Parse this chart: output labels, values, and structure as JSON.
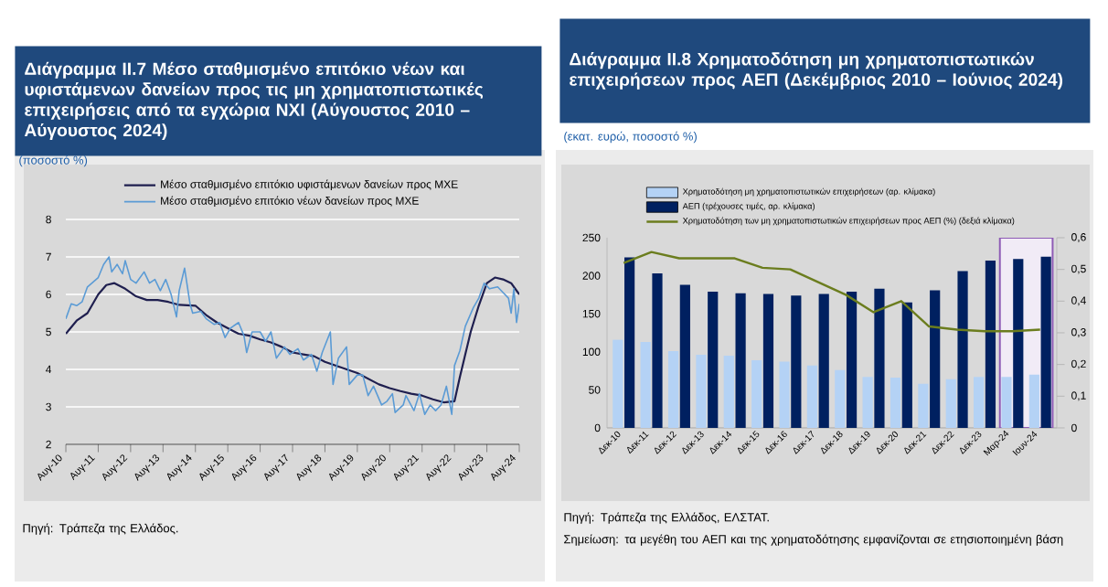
{
  "chart_data": [
    {
      "type": "line",
      "title": "Διάγραμμα ΙΙ.7 Μέσο σταθμισμένο επιτόκιο νέων και υφιστάμενων δανείων προς τις μη χρηματοπιστωτικές επιχειρήσεις από τα εγχώρια ΝΧΙ (Αύγουστος 2010 – Αύγουστος 2024)",
      "subtitle": "(ποσοστό %)",
      "annotations": [
        "Πηγή: Τράπεζα της Ελλάδος."
      ],
      "xlim": [
        "2010-08",
        "2024-08"
      ],
      "xticks": [
        {
          "value": "2010-08",
          "label": "Αυγ-10"
        },
        {
          "value": "2011-08",
          "label": "Αυγ-11"
        },
        {
          "value": "2012-08",
          "label": "Αυγ-12"
        },
        {
          "value": "2013-08",
          "label": "Αυγ-13"
        },
        {
          "value": "2014-08",
          "label": "Αυγ-14"
        },
        {
          "value": "2015-08",
          "label": "Αυγ-15"
        },
        {
          "value": "2016-08",
          "label": "Αυγ-16"
        },
        {
          "value": "2017-08",
          "label": "Αυγ-17"
        },
        {
          "value": "2018-08",
          "label": "Αυγ-18"
        },
        {
          "value": "2019-08",
          "label": "Αυγ-19"
        },
        {
          "value": "2020-08",
          "label": "Αυγ-20"
        },
        {
          "value": "2021-08",
          "label": "Αυγ-21"
        },
        {
          "value": "2022-08",
          "label": "Αυγ-22"
        },
        {
          "value": "2023-08",
          "label": "Αυγ-23"
        },
        {
          "value": "2024-08",
          "label": "Αυγ-24"
        }
      ],
      "ylim": [
        2,
        8
      ],
      "yticks": [
        2,
        3,
        4,
        5,
        6,
        7,
        8
      ],
      "grid": "y",
      "legend": "top",
      "series": [
        {
          "name": "Μέσο σταθμισμένο επιτόκιο υφιστάμενων δανείων προς ΜΧΕ",
          "color": "#1f1f4f",
          "x": [
            "2010-08",
            "2010-12",
            "2011-04",
            "2011-08",
            "2011-11",
            "2012-02",
            "2012-06",
            "2012-10",
            "2013-02",
            "2013-06",
            "2013-10",
            "2014-02",
            "2014-08",
            "2014-12",
            "2015-04",
            "2015-08",
            "2015-12",
            "2016-04",
            "2016-08",
            "2016-12",
            "2017-04",
            "2017-08",
            "2017-12",
            "2018-04",
            "2018-08",
            "2018-12",
            "2019-04",
            "2019-08",
            "2019-12",
            "2020-04",
            "2020-08",
            "2020-12",
            "2021-04",
            "2021-08",
            "2021-12",
            "2022-04",
            "2022-08",
            "2022-10",
            "2022-12",
            "2023-02",
            "2023-05",
            "2023-08",
            "2023-11",
            "2024-02",
            "2024-05",
            "2024-08"
          ],
          "values": [
            4.95,
            5.3,
            5.5,
            6.0,
            6.25,
            6.3,
            6.15,
            5.95,
            5.85,
            5.85,
            5.8,
            5.72,
            5.7,
            5.45,
            5.25,
            5.1,
            4.95,
            4.9,
            4.8,
            4.72,
            4.6,
            4.45,
            4.4,
            4.35,
            4.2,
            4.1,
            4.0,
            3.9,
            3.75,
            3.6,
            3.5,
            3.42,
            3.35,
            3.3,
            3.2,
            3.12,
            3.15,
            3.8,
            4.4,
            5.0,
            5.7,
            6.3,
            6.45,
            6.4,
            6.3,
            6.0
          ]
        },
        {
          "name": "Μέσο σταθμισμένο επιτόκιο νέων δανείων προς ΜΧΕ",
          "color": "#5b9bd5",
          "x": [
            "2010-08",
            "2010-10",
            "2010-12",
            "2011-02",
            "2011-04",
            "2011-08",
            "2011-10",
            "2011-12",
            "2012-01",
            "2012-03",
            "2012-05",
            "2012-06",
            "2012-08",
            "2012-10",
            "2013-01",
            "2013-03",
            "2013-05",
            "2013-07",
            "2013-09",
            "2013-11",
            "2014-01",
            "2014-02",
            "2014-04",
            "2014-06",
            "2014-07",
            "2014-10",
            "2014-12",
            "2015-03",
            "2015-05",
            "2015-07",
            "2015-09",
            "2015-12",
            "2016-02",
            "2016-03",
            "2016-05",
            "2016-08",
            "2016-10",
            "2016-12",
            "2017-02",
            "2017-05",
            "2017-07",
            "2017-10",
            "2017-12",
            "2018-03",
            "2018-05",
            "2018-07",
            "2018-10",
            "2018-11",
            "2019-01",
            "2019-04",
            "2019-05",
            "2019-08",
            "2019-10",
            "2019-12",
            "2020-02",
            "2020-05",
            "2020-07",
            "2020-09",
            "2020-10",
            "2021-01",
            "2021-02",
            "2021-05",
            "2021-07",
            "2021-09",
            "2021-11",
            "2022-01",
            "2022-03",
            "2022-05",
            "2022-07",
            "2022-08",
            "2022-10",
            "2022-12",
            "2023-03",
            "2023-05",
            "2023-07",
            "2023-09",
            "2023-12",
            "2024-02",
            "2024-04",
            "2024-05",
            "2024-06",
            "2024-07",
            "2024-08"
          ],
          "values": [
            5.35,
            5.75,
            5.7,
            5.8,
            6.2,
            6.45,
            6.8,
            7.0,
            6.6,
            6.8,
            6.55,
            6.9,
            6.4,
            6.3,
            6.6,
            6.3,
            6.4,
            6.1,
            6.4,
            6.0,
            5.4,
            6.1,
            6.7,
            5.75,
            5.5,
            5.55,
            5.35,
            5.2,
            5.25,
            4.85,
            5.1,
            5.25,
            4.9,
            4.45,
            5.0,
            5.0,
            4.75,
            5.0,
            4.3,
            4.6,
            4.4,
            4.55,
            4.25,
            4.4,
            3.95,
            4.45,
            5.0,
            3.6,
            4.3,
            4.6,
            3.6,
            3.85,
            3.85,
            3.3,
            3.55,
            3.05,
            3.15,
            3.35,
            2.85,
            3.05,
            3.3,
            2.9,
            3.35,
            2.8,
            3.05,
            2.9,
            3.05,
            3.55,
            2.8,
            4.1,
            4.5,
            5.15,
            5.65,
            5.9,
            6.3,
            6.15,
            6.2,
            6.05,
            5.9,
            5.5,
            6.15,
            5.25,
            5.75
          ]
        }
      ]
    },
    {
      "type": "bar",
      "title": "Διάγραμμα ΙΙ.8 Χρηματοδότηση μη χρηματοπιστωτικών επιχειρήσεων προς ΑΕΠ (Δεκέμβριος 2010 – Ιούνιος 2024)",
      "subtitle": "(εκατ. ευρώ, ποσοστό %)",
      "annotations": [
        "Πηγή: Τράπεζα της Ελλάδος, ΕΛΣΤΑΤ.",
        "Σημείωση: τα μεγέθη του ΑΕΠ και της χρηματοδότησης εμφανίζονται σε ετησιοποιημένη βάση"
      ],
      "categories": [
        "Δεκ-10",
        "Δεκ-11",
        "Δεκ-12",
        "Δεκ-13",
        "Δεκ-14",
        "Δεκ-15",
        "Δεκ-16",
        "Δεκ-17",
        "Δεκ-18",
        "Δεκ-19",
        "Δεκ-20",
        "Δεκ-21",
        "Δεκ-22",
        "Δεκ-23",
        "Μαρ-24",
        "Ιουν-24"
      ],
      "ylim": [
        0,
        250
      ],
      "yticks": [
        0,
        50,
        100,
        150,
        200,
        250
      ],
      "y2lim": [
        0,
        0.6
      ],
      "y2ticks": [
        0,
        {
          "value": 0.1,
          "label": "0,1"
        },
        {
          "value": 0.2,
          "label": "0,2"
        },
        {
          "value": 0.3,
          "label": "0,3"
        },
        {
          "value": 0.4,
          "label": "0,4"
        },
        {
          "value": 0.5,
          "label": "0,5"
        },
        {
          "value": 0.6,
          "label": "0,6"
        }
      ],
      "legend": "top",
      "series": [
        {
          "name": "Χρηματοδότηση μη χρηματοπιστωτικών επιχειρήσεων (αρ. κλίμακα)",
          "color": "#b4d2f5",
          "values": [
            116,
            113,
            101,
            96,
            95,
            89,
            87,
            82,
            76,
            67,
            66,
            58,
            64,
            67,
            67,
            70
          ]
        },
        {
          "name": "ΑΕΠ (τρέχουσες τιμές, αρ. κλίμακα)",
          "color": "#002060",
          "values": [
            224,
            203,
            188,
            179,
            177,
            176,
            174,
            176,
            179,
            183,
            165,
            181,
            206,
            220,
            222,
            225
          ]
        },
        {
          "name": "Χρηματοδότηση των μη χρηματοπιστωτικών επιχειρήσεων προς ΑΕΠ (%) (δεξιά κλίμακα)",
          "type": "line",
          "axis": "y2",
          "color": "#6b7d1e",
          "values": [
            0.52,
            0.555,
            0.535,
            0.535,
            0.535,
            0.505,
            0.5,
            0.46,
            0.42,
            0.365,
            0.4,
            0.32,
            0.31,
            0.305,
            0.305,
            0.31
          ]
        }
      ],
      "bands": [
        {
          "axis": "x",
          "from": "Μαρ-24",
          "to": "Ιουν-24"
        }
      ]
    }
  ]
}
